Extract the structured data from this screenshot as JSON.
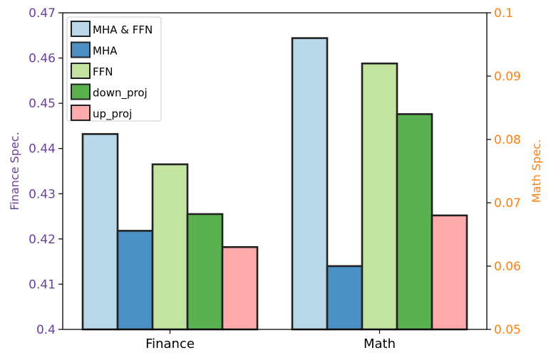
{
  "chart_data": {
    "type": "bar",
    "categories": [
      "Finance",
      "Math"
    ],
    "ylabel_left": "Finance Spec.",
    "ylabel_right": "Math Spec.",
    "ylim_left": [
      0.4,
      0.47
    ],
    "ylim_right": [
      0.05,
      0.1
    ],
    "yticks_left": [
      "0.4",
      "0.41",
      "0.42",
      "0.43",
      "0.44",
      "0.45",
      "0.46",
      "0.47"
    ],
    "yticks_right": [
      "0.05",
      "0.06",
      "0.07",
      "0.08",
      "0.09",
      "0.1"
    ],
    "left_axis_color": "#6b3fa0",
    "right_axis_color": "#ff7f0e",
    "legend_position": "top-left",
    "series": [
      {
        "name": "MHA & FFN",
        "color": "#b8d8e8",
        "finance": 0.4432,
        "math": 0.096
      },
      {
        "name": "MHA",
        "color": "#4a90c4",
        "finance": 0.4218,
        "math": 0.06
      },
      {
        "name": "FFN",
        "color": "#c3e4a1",
        "finance": 0.4365,
        "math": 0.092
      },
      {
        "name": "down_proj",
        "color": "#5ab150",
        "finance": 0.4255,
        "math": 0.084
      },
      {
        "name": "up_proj",
        "color": "#ffabab",
        "finance": 0.4182,
        "math": 0.068
      }
    ]
  }
}
